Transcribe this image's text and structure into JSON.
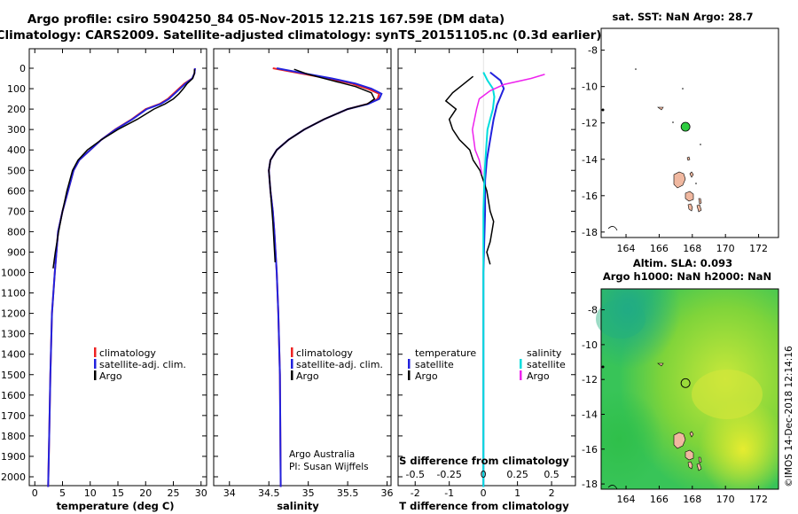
{
  "titles": {
    "line1": "Argo profile: csiro 5904250_84 05-Nov-2015 12.21S 167.59E (DM data)",
    "line2": "Climatology: CARS2009. Satellite-adjusted climatology: synTS_20151105.nc (0.3d earlier)"
  },
  "colors": {
    "climatology": "#ee2222",
    "satellite": "#2222dd",
    "argo": "#000000",
    "sal_satellite": "#00dddd",
    "sal_argo": "#ee22ee"
  },
  "depth_axis": {
    "ticks": [
      "0",
      "100",
      "200",
      "300",
      "400",
      "500",
      "600",
      "700",
      "800",
      "900",
      "1000",
      "1100",
      "1200",
      "1300",
      "1400",
      "1500",
      "1600",
      "1700",
      "1800",
      "1900",
      "2000"
    ]
  },
  "legend": {
    "climatology": "climatology",
    "satellite": "satellite-adj. clim.",
    "argo": "Argo"
  },
  "legend3": {
    "temperature": "temperature",
    "salinity": "salinity",
    "satellite": "satellite",
    "argo": "Argo"
  },
  "credit": {
    "line1": "Argo Australia",
    "line2": "PI: Susan Wijffels"
  },
  "chart_data": [
    {
      "type": "line",
      "title": "",
      "xlabel": "temperature (deg C)",
      "ylabel": "",
      "xlim": [
        -1,
        31
      ],
      "ylim": [
        2070,
        0
      ],
      "xticks": [
        "0",
        "5",
        "10",
        "15",
        "20",
        "25",
        "30"
      ],
      "series": [
        {
          "name": "climatology",
          "x": [
            28.9,
            28.8,
            28.4,
            27.0,
            26.0,
            25.0,
            24.0,
            22.5,
            20.0,
            17.5,
            14.5,
            12.0,
            10.0,
            8.0,
            7.0,
            6.0,
            5.0,
            4.2,
            3.6,
            3.1,
            2.8,
            2.6,
            2.4
          ],
          "y": [
            0,
            25,
            50,
            75,
            100,
            125,
            150,
            175,
            200,
            250,
            300,
            350,
            400,
            450,
            500,
            600,
            700,
            800,
            1000,
            1200,
            1500,
            1800,
            2050
          ]
        },
        {
          "name": "satellite-adj. clim.",
          "x": [
            28.9,
            28.8,
            28.4,
            27.2,
            26.2,
            25.2,
            24.2,
            22.7,
            20.2,
            17.6,
            14.6,
            12.0,
            10.0,
            8.0,
            7.0,
            6.0,
            5.0,
            4.2,
            3.6,
            3.1,
            2.8,
            2.6,
            2.4
          ],
          "y": [
            0,
            25,
            50,
            75,
            100,
            125,
            150,
            175,
            200,
            250,
            300,
            350,
            400,
            450,
            500,
            600,
            700,
            800,
            1000,
            1200,
            1500,
            1800,
            2050
          ]
        },
        {
          "name": "Argo",
          "x": [
            28.8,
            28.8,
            28.5,
            27.5,
            26.8,
            26.0,
            25.0,
            23.5,
            21.5,
            18.5,
            15.0,
            12.0,
            9.5,
            7.8,
            6.8,
            5.8,
            5.0,
            4.3,
            3.7,
            3.3
          ],
          "y": [
            5,
            25,
            50,
            75,
            100,
            125,
            150,
            175,
            200,
            250,
            300,
            350,
            400,
            450,
            500,
            600,
            700,
            800,
            900,
            980
          ]
        }
      ]
    },
    {
      "type": "line",
      "title": "",
      "xlabel": "salinity",
      "ylabel": "",
      "xlim": [
        33.8,
        36.05
      ],
      "ylim": [
        2070,
        0
      ],
      "xticks": [
        "34",
        "34.5",
        "35",
        "35.5",
        "36"
      ],
      "series": [
        {
          "name": "climatology",
          "x": [
            34.55,
            34.9,
            35.25,
            35.55,
            35.75,
            35.9,
            35.88,
            35.75,
            35.5,
            35.2,
            34.95,
            34.75,
            34.6,
            34.52,
            34.5,
            34.52,
            34.55,
            34.57,
            34.6,
            34.62,
            34.64,
            34.65
          ],
          "y": [
            0,
            25,
            50,
            75,
            100,
            125,
            150,
            175,
            200,
            250,
            300,
            350,
            400,
            450,
            500,
            600,
            700,
            800,
            1000,
            1200,
            1500,
            2050
          ]
        },
        {
          "name": "satellite-adj. clim.",
          "x": [
            34.6,
            34.95,
            35.3,
            35.6,
            35.8,
            35.93,
            35.9,
            35.76,
            35.5,
            35.2,
            34.95,
            34.75,
            34.6,
            34.52,
            34.5,
            34.52,
            34.55,
            34.57,
            34.6,
            34.62,
            34.64,
            34.65
          ],
          "y": [
            0,
            25,
            50,
            75,
            100,
            125,
            150,
            175,
            200,
            250,
            300,
            350,
            400,
            450,
            500,
            600,
            700,
            800,
            1000,
            1200,
            1500,
            2050
          ]
        },
        {
          "name": "Argo",
          "x": [
            34.82,
            35.0,
            35.3,
            35.6,
            35.8,
            35.84,
            35.75,
            35.5,
            35.2,
            34.95,
            34.75,
            34.6,
            34.52,
            34.5,
            34.52,
            34.55,
            34.58
          ],
          "y": [
            5,
            30,
            60,
            90,
            120,
            150,
            175,
            200,
            250,
            300,
            350,
            400,
            450,
            500,
            600,
            750,
            950
          ]
        }
      ]
    },
    {
      "type": "line",
      "title": "",
      "xlabel": "T difference from climatology",
      "ylabel": "",
      "xlim": [
        -2.5,
        2.7
      ],
      "ylim": [
        2070,
        0
      ],
      "xticks": [
        "-2",
        "-1",
        "0",
        "1",
        "2"
      ],
      "top_xlabel": "S difference from climatology",
      "top_xticks": [
        "-0.5",
        "-0.25",
        "0",
        "0.25",
        "0.5"
      ],
      "series": [
        {
          "name": "temperature satellite",
          "x": [
            0.2,
            0.5,
            0.6,
            0.5,
            0.4,
            0.3,
            0.2,
            0.1,
            0.05,
            0.05,
            0.0,
            0.0,
            0.0
          ],
          "y": [
            20,
            60,
            100,
            140,
            180,
            250,
            350,
            450,
            550,
            700,
            1000,
            1500,
            2050
          ]
        },
        {
          "name": "temperature Argo",
          "x": [
            -0.3,
            -0.6,
            -0.9,
            -1.1,
            -0.8,
            -1.0,
            -0.9,
            -0.7,
            -0.4,
            -0.3,
            -0.1,
            0.1,
            0.2,
            0.3,
            0.25,
            0.2,
            0.1,
            0.2
          ],
          "y": [
            40,
            80,
            120,
            160,
            200,
            250,
            300,
            350,
            400,
            450,
            500,
            600,
            700,
            750,
            800,
            850,
            900,
            960
          ]
        },
        {
          "name": "salinity satellite",
          "x": [
            0.0,
            0.03,
            0.07,
            0.08,
            0.07,
            0.05,
            0.03,
            0.02,
            0.01,
            0.0,
            0.0,
            0.0
          ],
          "y": [
            20,
            60,
            100,
            140,
            200,
            250,
            300,
            400,
            500,
            700,
            1000,
            2050
          ]
        },
        {
          "name": "salinity Argo",
          "x": [
            0.45,
            0.35,
            0.15,
            0.05,
            -0.03,
            -0.05,
            -0.08,
            -0.06,
            -0.03,
            -0.01
          ],
          "y": [
            30,
            50,
            80,
            110,
            150,
            200,
            300,
            400,
            450,
            520
          ]
        }
      ]
    },
    {
      "type": "scatter",
      "title": "sat. SST: NaN Argo: 28.7",
      "xlim": [
        162.5,
        173.2
      ],
      "ylim": [
        -18.3,
        -6.8
      ],
      "xticks": [
        "164",
        "166",
        "168",
        "170",
        "172"
      ],
      "yticks": [
        "-8",
        "-10",
        "-12",
        "-14",
        "-16",
        "-18"
      ],
      "x": [
        167.59
      ],
      "y": [
        -12.21
      ]
    },
    {
      "type": "heatmap",
      "title": "Altim. SLA: 0.093",
      "subtitle": "Argo h1000: NaN h2000: NaN",
      "xlim": [
        162.5,
        173.2
      ],
      "ylim": [
        -18.3,
        -6.8
      ],
      "xticks": [
        "164",
        "166",
        "168",
        "170",
        "172"
      ],
      "yticks": [
        "-8",
        "-10",
        "-12",
        "-14",
        "-16",
        "-18"
      ],
      "x": [
        167.59
      ],
      "y": [
        -12.21
      ]
    }
  ],
  "watermark": "©IMOS 14-Dec-2018 12:14:16"
}
